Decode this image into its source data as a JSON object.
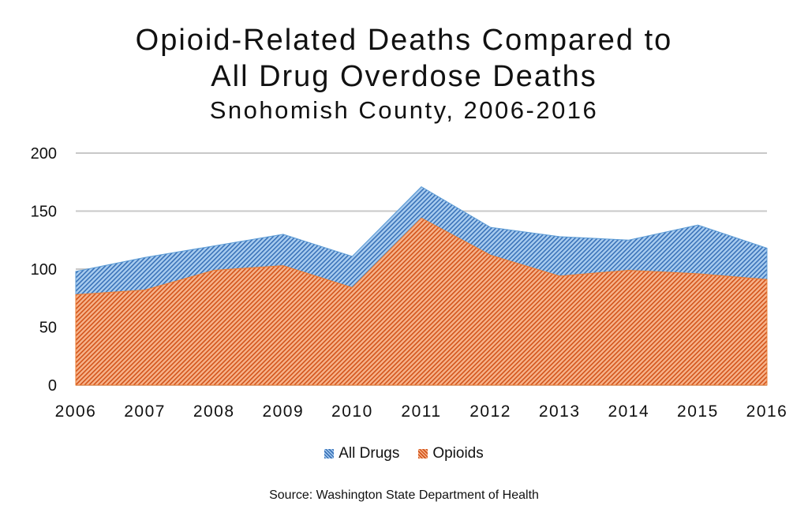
{
  "chart_data": {
    "type": "area",
    "title": "Opioid-Related Deaths Compared to",
    "title_line2": "All Drug Overdose Deaths",
    "subtitle": "Snohomish County, 2006-2016",
    "xlabel": "",
    "ylabel": "",
    "categories": [
      "2006",
      "2007",
      "2008",
      "2009",
      "2010",
      "2011",
      "2012",
      "2013",
      "2014",
      "2015",
      "2016"
    ],
    "ylim": [
      0,
      200
    ],
    "yticks": [
      "0",
      "50",
      "100",
      "150",
      "200"
    ],
    "ytick_values": [
      0,
      50,
      100,
      150,
      200
    ],
    "grid": true,
    "legend_position": "bottom",
    "series": [
      {
        "name": "All Drugs",
        "color": "#5b9bd5",
        "values": [
          98,
          110,
          120,
          130,
          111,
          171,
          136,
          128,
          125,
          138,
          118
        ]
      },
      {
        "name": "Opioids",
        "color": "#ed7d31",
        "values": [
          78,
          82,
          99,
          103,
          84,
          144,
          112,
          94,
          99,
          96,
          91
        ]
      }
    ],
    "source": "Source: Washington State Department of Health"
  }
}
